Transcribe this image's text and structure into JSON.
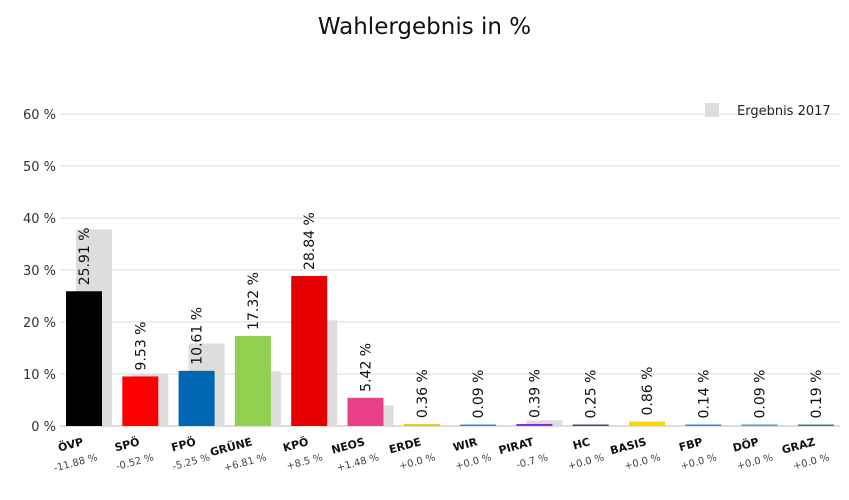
{
  "chart_data": {
    "type": "bar",
    "title": "Wahlergebnis in %",
    "ylim": [
      0,
      60
    ],
    "yticks": [
      0,
      10,
      20,
      30,
      40,
      50,
      60
    ],
    "ytick_labels": [
      "0 %",
      "10 %",
      "20 %",
      "30 %",
      "40 %",
      "50 %",
      "60 %"
    ],
    "grid": true,
    "legend": {
      "label": "Ergebnis 2017",
      "position": "top-right",
      "color": "#dddddd"
    },
    "categories": [
      "ÖVP",
      "SPÖ",
      "FPÖ",
      "GRÜNE",
      "KPÖ",
      "NEOS",
      "ERDE",
      "WIR",
      "PIRAT",
      "HC",
      "BASIS",
      "FBP",
      "DÖP",
      "GRAZ"
    ],
    "values": [
      25.91,
      9.53,
      10.61,
      17.32,
      28.84,
      5.42,
      0.36,
      0.09,
      0.39,
      0.25,
      0.86,
      0.14,
      0.09,
      0.19
    ],
    "value_labels": [
      "25.91 %",
      "9.53 %",
      "10.61 %",
      "17.32 %",
      "28.84 %",
      "5.42 %",
      "0.36 %",
      "0.09 %",
      "0.39 %",
      "0.25 %",
      "0.86 %",
      "0.14 %",
      "0.09 %",
      "0.19 %"
    ],
    "previous_values": [
      37.79,
      10.05,
      15.86,
      10.51,
      20.34,
      3.94,
      0,
      0,
      1.09,
      0,
      0,
      0,
      0,
      0
    ],
    "delta_labels": [
      "-11.88 %",
      "-0.52 %",
      "-5.25 %",
      "+6.81 %",
      "+8.5 %",
      "+1.48 %",
      "+0.0 %",
      "+0.0 %",
      "-0.7 %",
      "+0.0 %",
      "+0.0 %",
      "+0.0 %",
      "+0.0 %",
      "+0.0 %"
    ],
    "colors": [
      "#000000",
      "#ff0000",
      "#0066b3",
      "#92d050",
      "#e60000",
      "#e84188",
      "#e6c800",
      "#1e90ff",
      "#8a2be2",
      "#33469a",
      "#ffd700",
      "#1e90ff",
      "#4a9fd6",
      "#2e8b57"
    ],
    "previous_color": "#dddddd"
  }
}
